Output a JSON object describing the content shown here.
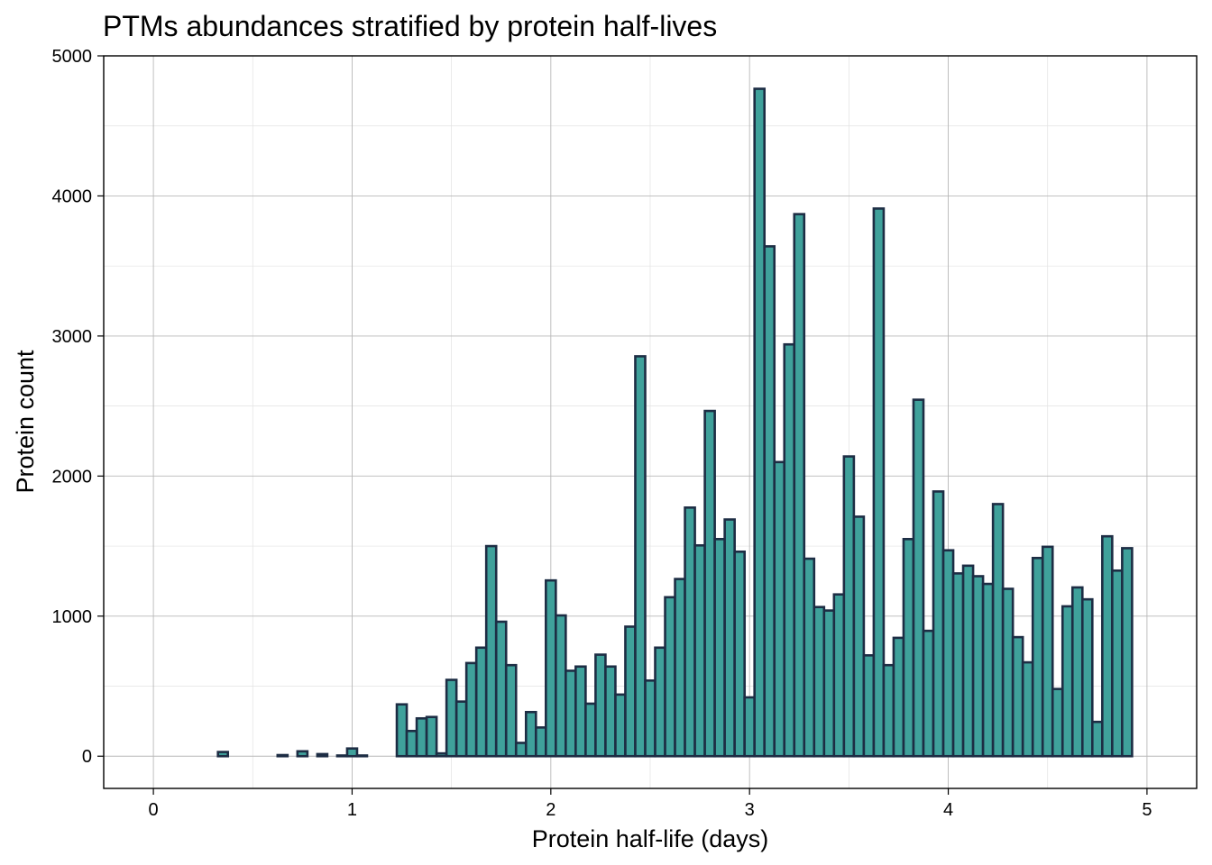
{
  "chart_data": {
    "type": "bar",
    "title": "PTMs abundances stratified by protein half-lives",
    "xlabel": "Protein half-life (days)",
    "ylabel": "Protein count",
    "xlim": [
      -0.25,
      5.25
    ],
    "ylim": [
      -230,
      5000
    ],
    "xticks": [
      "0",
      "1",
      "2",
      "3",
      "4",
      "5"
    ],
    "yticks": [
      "0",
      "1000",
      "2000",
      "3000",
      "4000",
      "5000"
    ],
    "bin_width": 0.05,
    "grid": true,
    "fill_color": "#3fa19b",
    "edge_color": "#1d2d44",
    "bins": [
      {
        "x": 0.05,
        "value": 0
      },
      {
        "x": 0.1,
        "value": 0
      },
      {
        "x": 0.15,
        "value": 0
      },
      {
        "x": 0.2,
        "value": 0
      },
      {
        "x": 0.25,
        "value": 0
      },
      {
        "x": 0.3,
        "value": 0
      },
      {
        "x": 0.35,
        "value": 30
      },
      {
        "x": 0.4,
        "value": 0
      },
      {
        "x": 0.45,
        "value": 0
      },
      {
        "x": 0.5,
        "value": 0
      },
      {
        "x": 0.55,
        "value": 0
      },
      {
        "x": 0.6,
        "value": 0
      },
      {
        "x": 0.65,
        "value": 8
      },
      {
        "x": 0.7,
        "value": 0
      },
      {
        "x": 0.75,
        "value": 35
      },
      {
        "x": 0.8,
        "value": 0
      },
      {
        "x": 0.85,
        "value": 15
      },
      {
        "x": 0.9,
        "value": 0
      },
      {
        "x": 0.95,
        "value": 5
      },
      {
        "x": 1.0,
        "value": 55
      },
      {
        "x": 1.05,
        "value": 5
      },
      {
        "x": 1.1,
        "value": 0
      },
      {
        "x": 1.15,
        "value": 0
      },
      {
        "x": 1.2,
        "value": 0
      },
      {
        "x": 1.25,
        "value": 370
      },
      {
        "x": 1.3,
        "value": 180
      },
      {
        "x": 1.35,
        "value": 270
      },
      {
        "x": 1.4,
        "value": 280
      },
      {
        "x": 1.45,
        "value": 20
      },
      {
        "x": 1.5,
        "value": 545
      },
      {
        "x": 1.55,
        "value": 390
      },
      {
        "x": 1.6,
        "value": 665
      },
      {
        "x": 1.65,
        "value": 775
      },
      {
        "x": 1.7,
        "value": 1500
      },
      {
        "x": 1.75,
        "value": 960
      },
      {
        "x": 1.8,
        "value": 650
      },
      {
        "x": 1.85,
        "value": 95
      },
      {
        "x": 1.9,
        "value": 315
      },
      {
        "x": 1.95,
        "value": 205
      },
      {
        "x": 2.0,
        "value": 1255
      },
      {
        "x": 2.05,
        "value": 1005
      },
      {
        "x": 2.1,
        "value": 610
      },
      {
        "x": 2.15,
        "value": 640
      },
      {
        "x": 2.2,
        "value": 375
      },
      {
        "x": 2.25,
        "value": 725
      },
      {
        "x": 2.3,
        "value": 640
      },
      {
        "x": 2.35,
        "value": 440
      },
      {
        "x": 2.4,
        "value": 925
      },
      {
        "x": 2.45,
        "value": 2855
      },
      {
        "x": 2.5,
        "value": 540
      },
      {
        "x": 2.55,
        "value": 775
      },
      {
        "x": 2.6,
        "value": 1135
      },
      {
        "x": 2.65,
        "value": 1265
      },
      {
        "x": 2.7,
        "value": 1775
      },
      {
        "x": 2.75,
        "value": 1505
      },
      {
        "x": 2.8,
        "value": 2465
      },
      {
        "x": 2.85,
        "value": 1550
      },
      {
        "x": 2.9,
        "value": 1690
      },
      {
        "x": 2.95,
        "value": 1460
      },
      {
        "x": 3.0,
        "value": 420
      },
      {
        "x": 3.05,
        "value": 4765
      },
      {
        "x": 3.1,
        "value": 3640
      },
      {
        "x": 3.15,
        "value": 2100
      },
      {
        "x": 3.2,
        "value": 2940
      },
      {
        "x": 3.25,
        "value": 3870
      },
      {
        "x": 3.3,
        "value": 1410
      },
      {
        "x": 3.35,
        "value": 1065
      },
      {
        "x": 3.4,
        "value": 1040
      },
      {
        "x": 3.45,
        "value": 1155
      },
      {
        "x": 3.5,
        "value": 2140
      },
      {
        "x": 3.55,
        "value": 1710
      },
      {
        "x": 3.6,
        "value": 720
      },
      {
        "x": 3.65,
        "value": 3910
      },
      {
        "x": 3.7,
        "value": 650
      },
      {
        "x": 3.75,
        "value": 845
      },
      {
        "x": 3.8,
        "value": 1550
      },
      {
        "x": 3.85,
        "value": 2545
      },
      {
        "x": 3.9,
        "value": 895
      },
      {
        "x": 3.95,
        "value": 1890
      },
      {
        "x": 4.0,
        "value": 1470
      },
      {
        "x": 4.05,
        "value": 1305
      },
      {
        "x": 4.1,
        "value": 1360
      },
      {
        "x": 4.15,
        "value": 1285
      },
      {
        "x": 4.2,
        "value": 1230
      },
      {
        "x": 4.25,
        "value": 1800
      },
      {
        "x": 4.3,
        "value": 1195
      },
      {
        "x": 4.35,
        "value": 850
      },
      {
        "x": 4.4,
        "value": 670
      },
      {
        "x": 4.45,
        "value": 1415
      },
      {
        "x": 4.5,
        "value": 1495
      },
      {
        "x": 4.55,
        "value": 480
      },
      {
        "x": 4.6,
        "value": 1070
      },
      {
        "x": 4.65,
        "value": 1205
      },
      {
        "x": 4.7,
        "value": 1120
      },
      {
        "x": 4.75,
        "value": 245
      },
      {
        "x": 4.8,
        "value": 1570
      },
      {
        "x": 4.85,
        "value": 1325
      },
      {
        "x": 4.9,
        "value": 1485
      }
    ]
  }
}
